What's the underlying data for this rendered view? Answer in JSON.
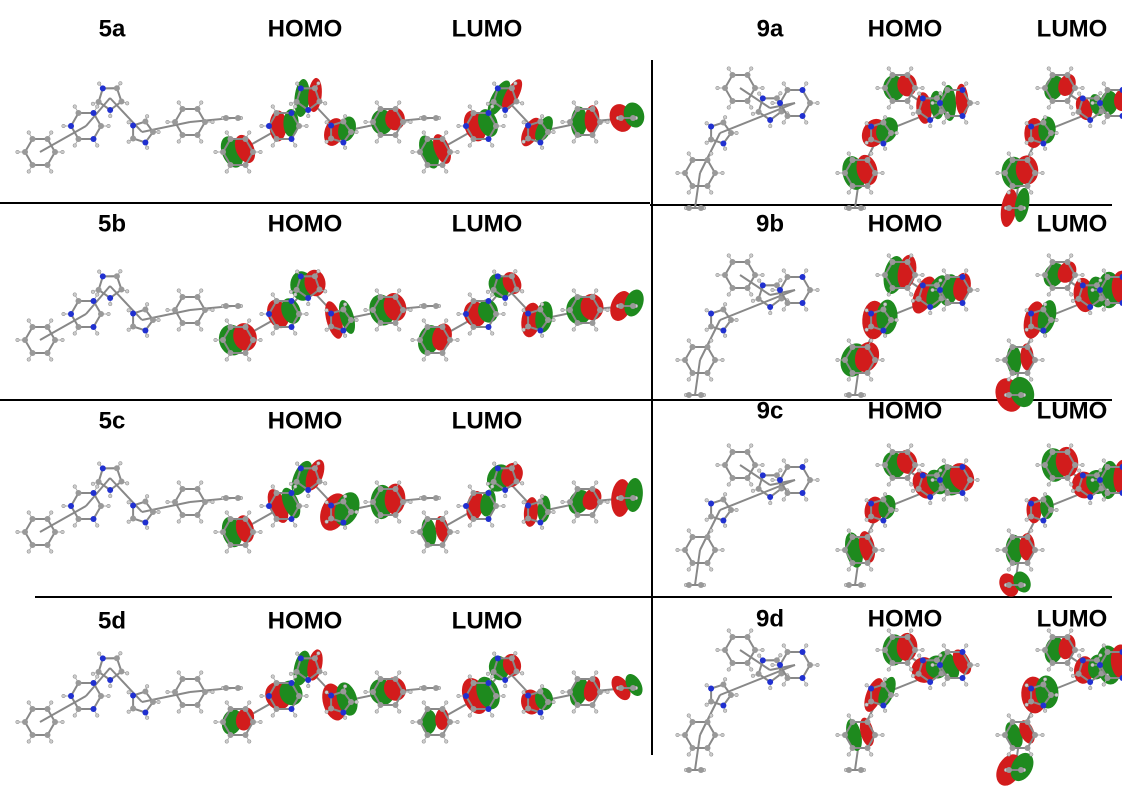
{
  "panels": [
    {
      "label": "5a",
      "homo": "HOMO",
      "lumo": "LUMO"
    },
    {
      "label": "5b",
      "homo": "HOMO",
      "lumo": "LUMO"
    },
    {
      "label": "5c",
      "homo": "HOMO",
      "lumo": "LUMO"
    },
    {
      "label": "5d",
      "homo": "HOMO",
      "lumo": "LUMO"
    },
    {
      "label": "9a",
      "homo": "HOMO",
      "lumo": "LUMO"
    },
    {
      "label": "9b",
      "homo": "HOMO",
      "lumo": "LUMO"
    },
    {
      "label": "9c",
      "homo": "HOMO",
      "lumo": "LUMO"
    },
    {
      "label": "9d",
      "homo": "HOMO",
      "lumo": "LUMO"
    }
  ]
}
